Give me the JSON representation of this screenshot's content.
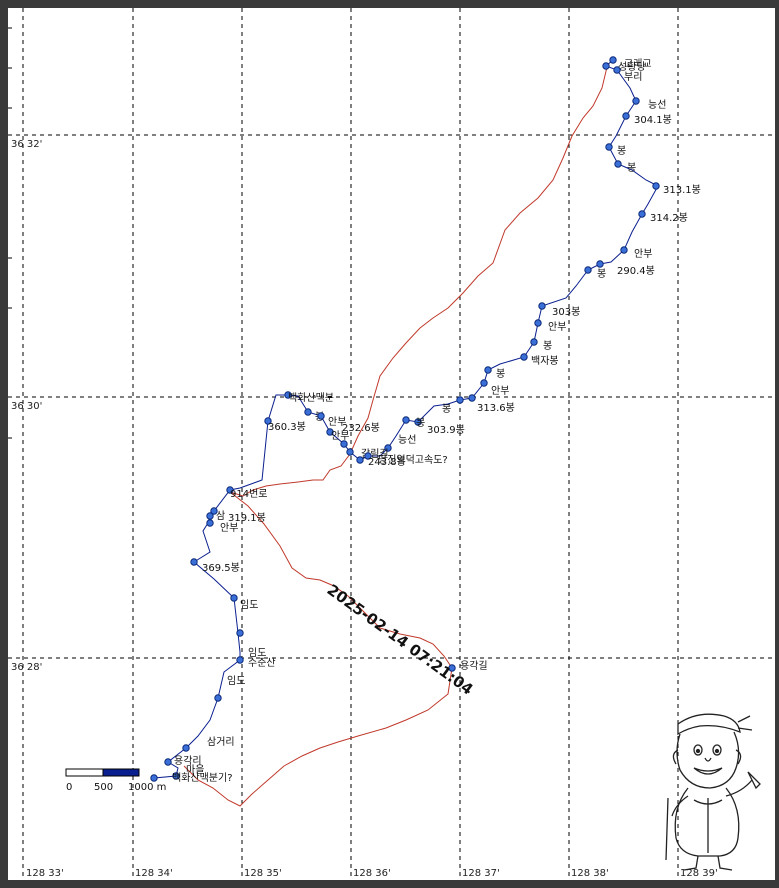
{
  "map": {
    "lat_labels": [
      "36 32'",
      "36 30'",
      "36 28'"
    ],
    "lon_labels": [
      "128 33'",
      "128 34'",
      "128 35'",
      "128 36'",
      "128 37'",
      "128 38'",
      "128 39'"
    ],
    "timestamp": "2025-02-14 07:21:04",
    "scale": {
      "label_0": "0",
      "label_500": "500",
      "label_1000": "1000 m"
    },
    "colors": {
      "track": "#c0392b",
      "route": "#0a1f8f",
      "waypoint": "#3b6fd8"
    },
    "waypoints": [
      {
        "label": "고래교"
      },
      {
        "label": "성황당"
      },
      {
        "label": "부리"
      },
      {
        "label": "능선"
      },
      {
        "label": "304.1봉"
      },
      {
        "label": "봉"
      },
      {
        "label": "봉"
      },
      {
        "label": "313.1봉"
      },
      {
        "label": "314.2봉"
      },
      {
        "label": "안부"
      },
      {
        "label": "290.4봉"
      },
      {
        "label": "봉"
      },
      {
        "label": "303봉"
      },
      {
        "label": "안부"
      },
      {
        "label": "봉"
      },
      {
        "label": "백자봉"
      },
      {
        "label": "봉"
      },
      {
        "label": "안부"
      },
      {
        "label": "봉"
      },
      {
        "label": "313.6봉"
      },
      {
        "label": "봉"
      },
      {
        "label": "303.9봉"
      },
      {
        "label": "능선"
      },
      {
        "label": "백화산맥분"
      },
      {
        "label": "360.3봉"
      },
      {
        "label": "봉"
      },
      {
        "label": "안부"
      },
      {
        "label": "232.6봉"
      },
      {
        "label": "안부"
      },
      {
        "label": "갈림길"
      },
      {
        "label": "243.8봉"
      },
      {
        "label": "당진영덕고속도?"
      },
      {
        "label": "914번로"
      },
      {
        "label": "삼"
      },
      {
        "label": "319.1봉"
      },
      {
        "label": "안부"
      },
      {
        "label": "369.5봉"
      },
      {
        "label": "임도"
      },
      {
        "label": "임도"
      },
      {
        "label": "수준산"
      },
      {
        "label": "임도"
      },
      {
        "label": "삼거리"
      },
      {
        "label": "용각리"
      },
      {
        "label": "마을"
      },
      {
        "label": "백화산맥분기?"
      },
      {
        "label": "용각길"
      }
    ]
  }
}
